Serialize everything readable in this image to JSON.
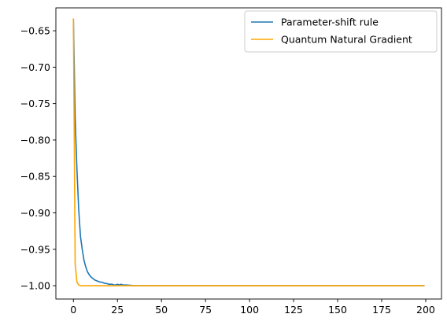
{
  "chart_data": {
    "type": "line",
    "title": "",
    "xlabel": "",
    "ylabel": "",
    "xlim": [
      -9.95,
      208.95
    ],
    "ylim": [
      -1.0183,
      -0.6186
    ],
    "x_ticks": [
      0,
      25,
      50,
      75,
      100,
      125,
      150,
      175,
      200
    ],
    "y_ticks": [
      -0.65,
      -0.7,
      -0.75,
      -0.8,
      -0.85,
      -0.9,
      -0.95,
      -1.0
    ],
    "x_tick_labels": [
      "0",
      "25",
      "50",
      "75",
      "100",
      "125",
      "150",
      "175",
      "200"
    ],
    "y_tick_labels": [
      "−0.65",
      "−0.70",
      "−0.75",
      "−0.80",
      "−0.85",
      "−0.90",
      "−0.95",
      "−1.00"
    ],
    "grid": false,
    "legend_position": "upper right",
    "series": [
      {
        "name": "Parameter-shift rule",
        "color": "#1f77b4",
        "x": [
          0,
          1,
          2,
          3,
          4,
          5,
          6,
          7,
          8,
          9,
          10,
          11,
          12,
          13,
          14,
          15,
          16,
          17,
          18,
          19,
          20,
          21,
          22,
          23,
          24,
          25,
          26,
          27,
          28,
          29,
          30,
          35,
          40,
          50,
          199
        ],
        "y": [
          -0.634,
          -0.77,
          -0.84,
          -0.895,
          -0.932,
          -0.95,
          -0.965,
          -0.974,
          -0.981,
          -0.985,
          -0.988,
          -0.99,
          -0.992,
          -0.993,
          -0.994,
          -0.995,
          -0.995,
          -0.996,
          -0.997,
          -0.997,
          -0.998,
          -0.998,
          -0.998,
          -0.999,
          -0.999,
          -0.998,
          -0.999,
          -0.998,
          -0.999,
          -0.999,
          -0.999,
          -1.0,
          -1.0,
          -1.0,
          -1.0
        ]
      },
      {
        "name": "Quantum Natural Gradient",
        "color": "#ffa500",
        "x": [
          0,
          1,
          2,
          3,
          4,
          5,
          6,
          10,
          20,
          199
        ],
        "y": [
          -0.634,
          -0.97,
          -0.995,
          -0.999,
          -1.0,
          -1.0,
          -1.0,
          -1.0,
          -1.0,
          -1.0
        ]
      }
    ]
  }
}
